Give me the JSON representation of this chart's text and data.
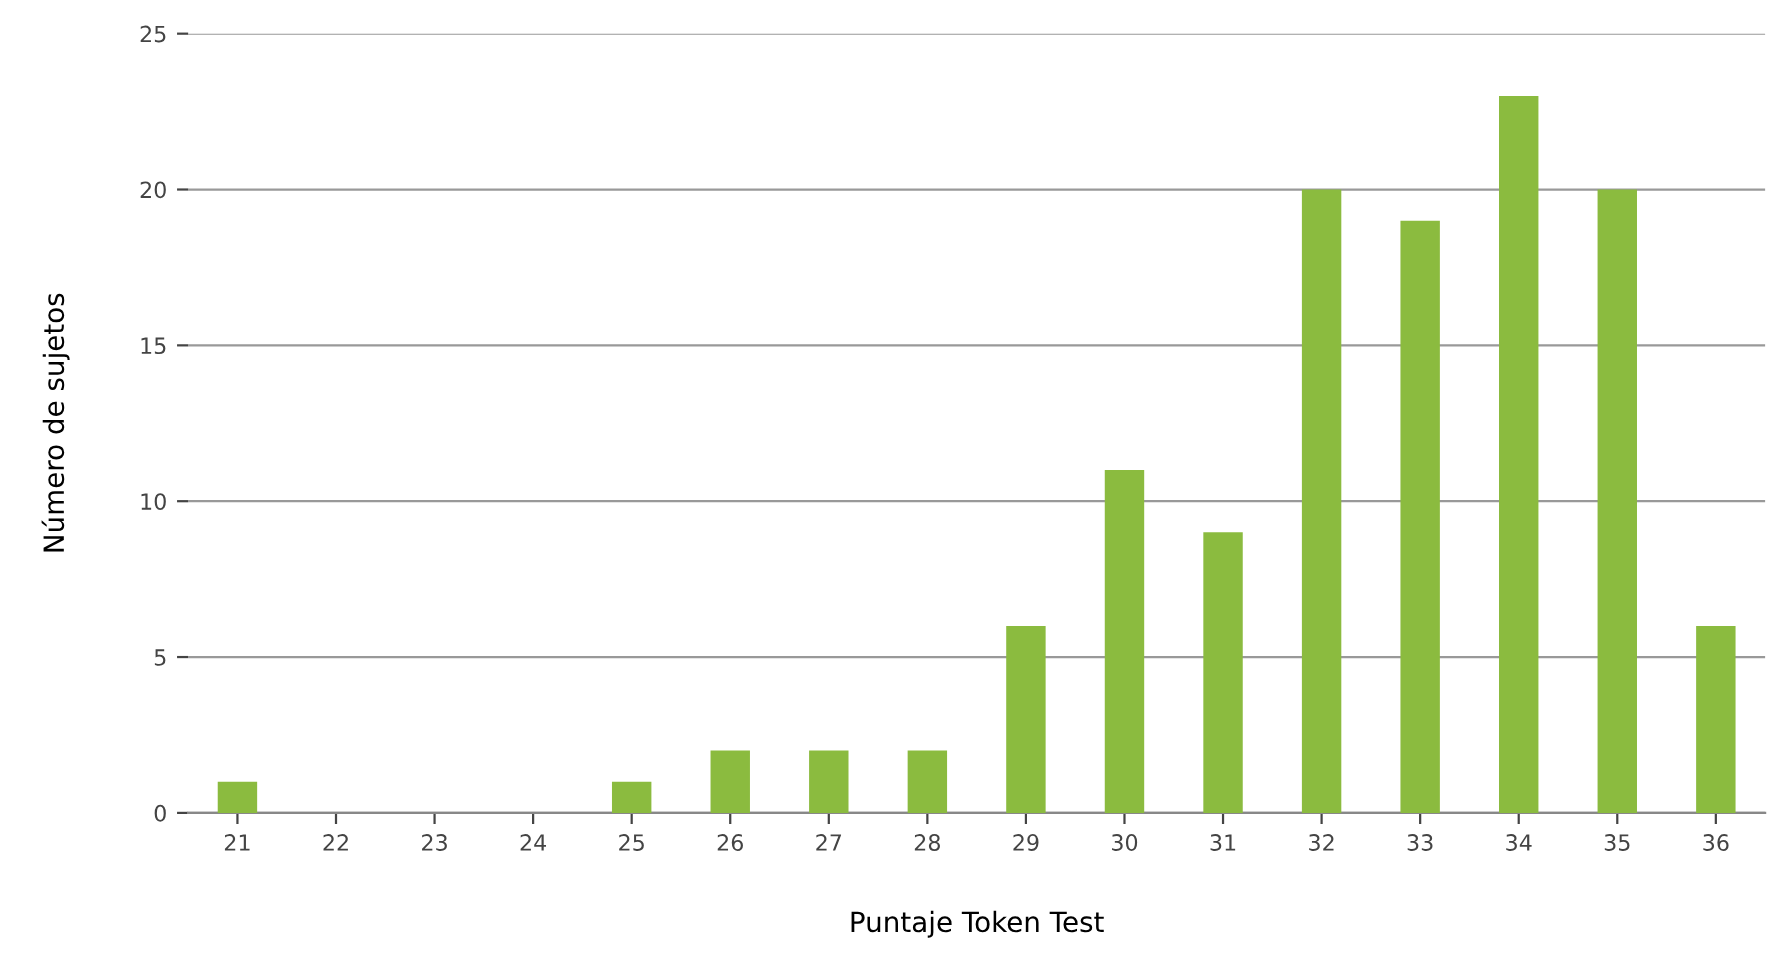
{
  "chart_data": {
    "type": "bar",
    "xlabel": "Puntaje Token Test",
    "ylabel": "Número de sujetos",
    "categories": [
      "21",
      "22",
      "23",
      "24",
      "25",
      "26",
      "27",
      "28",
      "29",
      "30",
      "31",
      "32",
      "33",
      "34",
      "35",
      "36"
    ],
    "values": [
      1,
      0,
      0,
      0,
      1,
      2,
      2,
      2,
      6,
      11,
      9,
      20,
      19,
      23,
      20,
      6
    ],
    "color": "#8bbb3f",
    "ylim": [
      0,
      25
    ],
    "yticks": [
      0,
      5,
      10,
      15,
      20,
      25
    ],
    "grid": "y",
    "legend": false
  }
}
